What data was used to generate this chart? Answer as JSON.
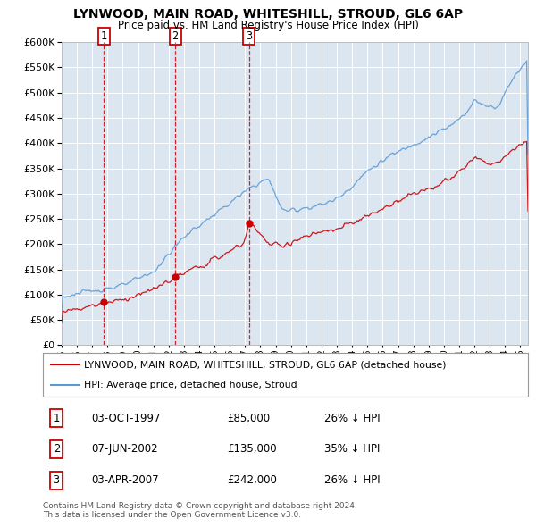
{
  "title": "LYNWOOD, MAIN ROAD, WHITESHILL, STROUD, GL6 6AP",
  "subtitle": "Price paid vs. HM Land Registry's House Price Index (HPI)",
  "plot_bg_color": "#dce6f1",
  "ylim": [
    0,
    600000
  ],
  "yticks": [
    0,
    50000,
    100000,
    150000,
    200000,
    250000,
    300000,
    350000,
    400000,
    450000,
    500000,
    550000,
    600000
  ],
  "xlim_start": 1995.0,
  "xlim_end": 2025.5,
  "sales": [
    {
      "label": "1",
      "date_num": 1997.75,
      "price": 85000,
      "date_str": "03-OCT-1997"
    },
    {
      "label": "2",
      "date_num": 2002.43,
      "price": 135000,
      "date_str": "07-JUN-2002"
    },
    {
      "label": "3",
      "date_num": 2007.25,
      "price": 242000,
      "date_str": "03-APR-2007"
    }
  ],
  "legend_entries": [
    {
      "label": "LYNWOOD, MAIN ROAD, WHITESHILL, STROUD, GL6 6AP (detached house)",
      "color": "#cc0000",
      "lw": 1.5
    },
    {
      "label": "HPI: Average price, detached house, Stroud",
      "color": "#5b9bd5",
      "lw": 1.5
    }
  ],
  "footer": "Contains HM Land Registry data © Crown copyright and database right 2024.\nThis data is licensed under the Open Government Licence v3.0.",
  "table_rows": [
    [
      "1",
      "03-OCT-1997",
      "£85,000",
      "26% ↓ HPI"
    ],
    [
      "2",
      "07-JUN-2002",
      "£135,000",
      "35% ↓ HPI"
    ],
    [
      "3",
      "03-APR-2007",
      "£242,000",
      "26% ↓ HPI"
    ]
  ]
}
